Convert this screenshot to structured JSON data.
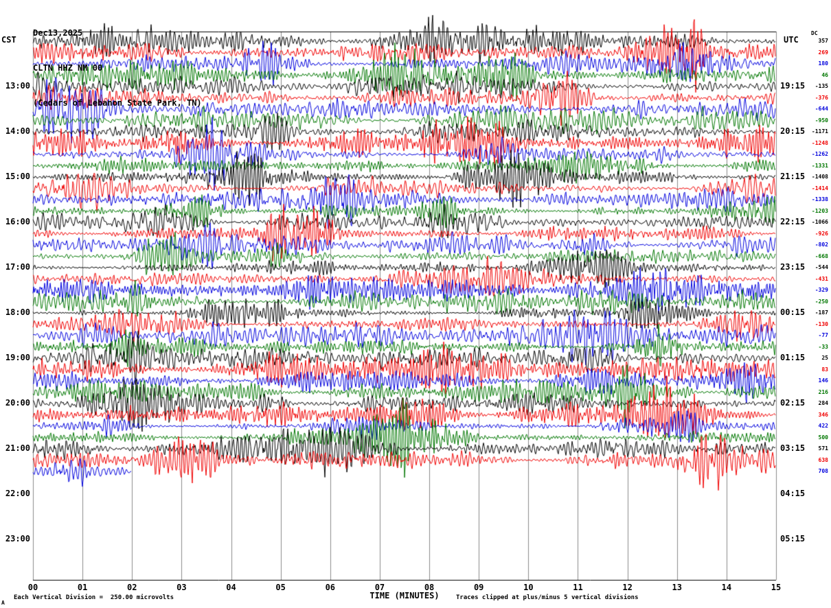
{
  "header": {
    "date": "Dec13,2025",
    "station": "CLTN HHZ NM 00",
    "location": "(Cedars of Lebanon State Park, TN)"
  },
  "axes": {
    "left_label": "CST",
    "right_label": "UTC",
    "dc_label": "DC",
    "x_label": "TIME (MINUTES)",
    "x_ticks": [
      "00",
      "01",
      "02",
      "03",
      "04",
      "05",
      "06",
      "07",
      "08",
      "09",
      "10",
      "11",
      "12",
      "13",
      "14",
      "15"
    ],
    "left_times": [
      {
        "label": "13:00",
        "row": 4
      },
      {
        "label": "14:00",
        "row": 8
      },
      {
        "label": "15:00",
        "row": 12
      },
      {
        "label": "16:00",
        "row": 16
      },
      {
        "label": "17:00",
        "row": 20
      },
      {
        "label": "18:00",
        "row": 24
      },
      {
        "label": "19:00",
        "row": 28
      },
      {
        "label": "20:00",
        "row": 32
      },
      {
        "label": "21:00",
        "row": 36
      },
      {
        "label": "22:00",
        "row": 40
      },
      {
        "label": "23:00",
        "row": 44
      }
    ],
    "right_times": [
      {
        "label": "19:15",
        "row": 4
      },
      {
        "label": "20:15",
        "row": 8
      },
      {
        "label": "21:15",
        "row": 12
      },
      {
        "label": "22:15",
        "row": 16
      },
      {
        "label": "23:15",
        "row": 20
      },
      {
        "label": "00:15",
        "row": 24
      },
      {
        "label": "01:15",
        "row": 28
      },
      {
        "label": "02:15",
        "row": 32
      },
      {
        "label": "03:15",
        "row": 36
      },
      {
        "label": "04:15",
        "row": 40
      },
      {
        "label": "05:15",
        "row": 44
      }
    ]
  },
  "footer": {
    "left": "Each Vertical Division =  250.00 microvolts",
    "center": "TIME (MINUTES)",
    "right": "Traces clipped at plus/minus 5 vertical divisions",
    "corner": "A"
  },
  "chart_data": {
    "type": "line",
    "subtype": "helicorder-seismogram",
    "title": "CLTN HHZ NM 00 (Cedars of Lebanon State Park, TN) Dec13,2025",
    "xlabel": "TIME (MINUTES)",
    "x_range_minutes": [
      0,
      15
    ],
    "minutes_per_row": 15,
    "rows": 39,
    "first_row_start_cst": "12:00",
    "last_row_end_minute": 2,
    "trace_colors_cycle": [
      "#000000",
      "#f00000",
      "#0000dd",
      "#007700"
    ],
    "grid": true,
    "vertical_division_microvolts": 250.0,
    "clip_divisions": 5,
    "dc_offsets": [
      357,
      269,
      180,
      46,
      -135,
      -376,
      -644,
      -950,
      -1171,
      -1248,
      -1262,
      -1331,
      -1408,
      -1414,
      -1338,
      -1203,
      -1066,
      -926,
      -802,
      -668,
      -544,
      -431,
      -329,
      -250,
      -187,
      -130,
      -77,
      -33,
      25,
      83,
      146,
      216,
      284,
      346,
      422,
      500,
      571,
      638,
      708
    ]
  }
}
